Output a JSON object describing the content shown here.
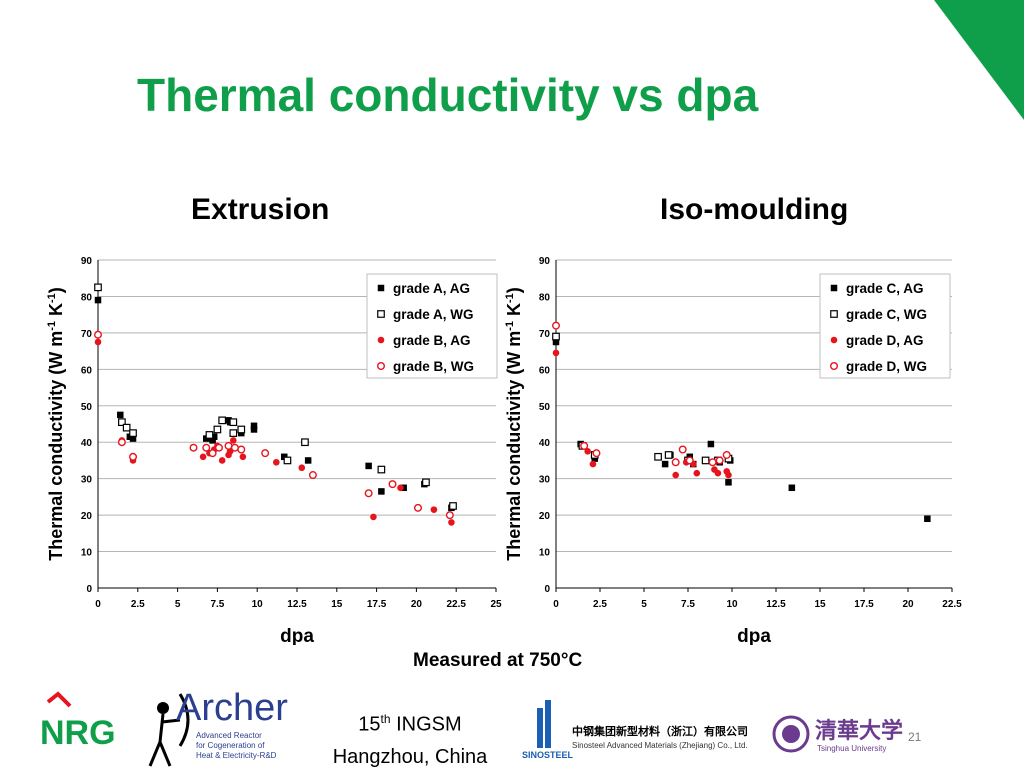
{
  "slide": {
    "title": "Thermal conductivity vs dpa",
    "note": "Measured at 750°C",
    "footer_line1_num": "15",
    "footer_line1_sup": "th",
    "footer_line1_rest": " INGSM",
    "footer_line2": "Hangzhou, China",
    "page_number": "21",
    "accent_color": "#0f9f4a",
    "logos": {
      "nrg": "NRG",
      "archer": "Archer",
      "archer_line1": "Advanced Reactor",
      "archer_line2": "for Cogeneration of",
      "archer_line3": "Heat & Electricity-R&D",
      "sinosteel_name": "SINOSTEEL",
      "sinosteel_cn": "中钢集团新型材料（浙江）有限公司",
      "sinosteel_en": "Sinosteel Advanced Materials (Zhejiang) Co., Ltd.",
      "tsinghua_cn": "清華大学",
      "tsinghua_en": "Tsinghua University"
    }
  },
  "chart_data": [
    {
      "type": "scatter",
      "title": "Extrusion",
      "xlabel": "dpa",
      "ylabel": "Thermal conductivity (W m-1 K-1)",
      "xlim": [
        0,
        25
      ],
      "ylim": [
        0,
        90
      ],
      "xticks": [
        "0",
        "2.5",
        "5",
        "7.5",
        "10",
        "12.5",
        "15",
        "17.5",
        "20",
        "22.5",
        "25"
      ],
      "yticks": [
        "0",
        "10",
        "20",
        "30",
        "40",
        "50",
        "60",
        "70",
        "80",
        "90"
      ],
      "grid": "horizontal",
      "legend_position": "top-right",
      "series": [
        {
          "name": "grade A, AG",
          "marker": "filled-square",
          "color": "#000000",
          "points": [
            [
              0,
              79
            ],
            [
              1.4,
              47.5
            ],
            [
              2,
              41.5
            ],
            [
              2.2,
              41
            ],
            [
              6.8,
              41
            ],
            [
              7.2,
              40.5
            ],
            [
              7.3,
              41.5
            ],
            [
              8.2,
              46
            ],
            [
              8.3,
              45.5
            ],
            [
              9,
              42.5
            ],
            [
              9.8,
              43.5
            ],
            [
              9.8,
              44.5
            ],
            [
              11.7,
              36
            ],
            [
              13.2,
              35
            ],
            [
              17,
              33.5
            ],
            [
              17.8,
              26.5
            ],
            [
              19.2,
              27.5
            ],
            [
              20.5,
              28.5
            ],
            [
              22.2,
              22
            ]
          ]
        },
        {
          "name": "grade A, WG",
          "marker": "open-square",
          "color": "#000000",
          "points": [
            [
              0,
              82.5
            ],
            [
              1.5,
              45.5
            ],
            [
              1.8,
              44
            ],
            [
              2.2,
              42.5
            ],
            [
              7,
              42
            ],
            [
              7.5,
              43.5
            ],
            [
              7.8,
              46
            ],
            [
              8.5,
              45.5
            ],
            [
              8.5,
              42.5
            ],
            [
              9,
              43.5
            ],
            [
              11.9,
              35
            ],
            [
              13,
              40
            ],
            [
              17.8,
              32.5
            ],
            [
              20.6,
              29
            ],
            [
              22.3,
              22.5
            ]
          ]
        },
        {
          "name": "grade B, AG",
          "marker": "filled-circle",
          "color": "#e8141d",
          "points": [
            [
              0,
              67.5
            ],
            [
              1.5,
              40.5
            ],
            [
              2.2,
              35
            ],
            [
              6.6,
              36
            ],
            [
              7,
              37
            ],
            [
              7.3,
              38
            ],
            [
              7.5,
              39
            ],
            [
              7.8,
              35
            ],
            [
              8.2,
              36.5
            ],
            [
              8.3,
              37.5
            ],
            [
              8.5,
              40.5
            ],
            [
              9,
              38
            ],
            [
              9.1,
              36
            ],
            [
              11.2,
              34.5
            ],
            [
              12.8,
              33
            ],
            [
              17.3,
              19.5
            ],
            [
              19,
              27.5
            ],
            [
              21.1,
              21.5
            ],
            [
              22.2,
              18
            ]
          ]
        },
        {
          "name": "grade B, WG",
          "marker": "open-circle",
          "color": "#e8141d",
          "points": [
            [
              0,
              69.5
            ],
            [
              1.5,
              40
            ],
            [
              2.2,
              36
            ],
            [
              6,
              38.5
            ],
            [
              6.8,
              38.5
            ],
            [
              7.2,
              37
            ],
            [
              7.6,
              38.5
            ],
            [
              8.2,
              39
            ],
            [
              8.6,
              38.5
            ],
            [
              9,
              38
            ],
            [
              10.5,
              37
            ],
            [
              13.5,
              31
            ],
            [
              17,
              26
            ],
            [
              18.5,
              28.5
            ],
            [
              20.1,
              22
            ],
            [
              22.1,
              20
            ]
          ]
        }
      ]
    },
    {
      "type": "scatter",
      "title": "Iso-moulding",
      "xlabel": "dpa",
      "ylabel": "Thermal conductivity (W m-1 K-1)",
      "xlim": [
        0,
        22.5
      ],
      "ylim": [
        0,
        90
      ],
      "xticks": [
        "0",
        "2.5",
        "5",
        "7.5",
        "10",
        "12.5",
        "15",
        "17.5",
        "20",
        "22.5"
      ],
      "yticks": [
        "0",
        "10",
        "20",
        "30",
        "40",
        "50",
        "60",
        "70",
        "80",
        "90"
      ],
      "grid": "horizontal",
      "legend_position": "top-right",
      "series": [
        {
          "name": "grade C, AG",
          "marker": "filled-square",
          "color": "#000000",
          "points": [
            [
              0,
              67.5
            ],
            [
              1.4,
              39.5
            ],
            [
              2.2,
              35.5
            ],
            [
              6.2,
              34
            ],
            [
              6.5,
              36.5
            ],
            [
              7.6,
              36
            ],
            [
              7.8,
              34
            ],
            [
              8.8,
              39.5
            ],
            [
              9.3,
              34.5
            ],
            [
              9.8,
              29
            ],
            [
              9.9,
              35
            ],
            [
              13.4,
              27.5
            ],
            [
              21.1,
              19
            ]
          ]
        },
        {
          "name": "grade C, WG",
          "marker": "open-square",
          "color": "#000000",
          "points": [
            [
              0,
              69
            ],
            [
              1.5,
              39
            ],
            [
              2.2,
              36.5
            ],
            [
              5.8,
              36
            ],
            [
              6.4,
              36.5
            ],
            [
              7.5,
              35
            ],
            [
              8.5,
              35
            ],
            [
              9.2,
              35
            ],
            [
              9.8,
              35.5
            ]
          ]
        },
        {
          "name": "grade D, AG",
          "marker": "filled-circle",
          "color": "#e8141d",
          "points": [
            [
              0,
              64.5
            ],
            [
              1.8,
              37.5
            ],
            [
              2.1,
              34
            ],
            [
              6.8,
              31
            ],
            [
              7.4,
              34.5
            ],
            [
              7.8,
              34
            ],
            [
              8,
              31.5
            ],
            [
              9,
              32.5
            ],
            [
              9.2,
              31.5
            ],
            [
              9.7,
              32
            ],
            [
              9.8,
              31
            ]
          ]
        },
        {
          "name": "grade D, WG",
          "marker": "open-circle",
          "color": "#e8141d",
          "points": [
            [
              0,
              72
            ],
            [
              1.6,
              39
            ],
            [
              2.3,
              37
            ],
            [
              6.8,
              34.5
            ],
            [
              7.2,
              38
            ],
            [
              7.6,
              35
            ],
            [
              8.9,
              34.5
            ],
            [
              9.3,
              35
            ],
            [
              9.7,
              36.5
            ]
          ]
        }
      ]
    }
  ]
}
